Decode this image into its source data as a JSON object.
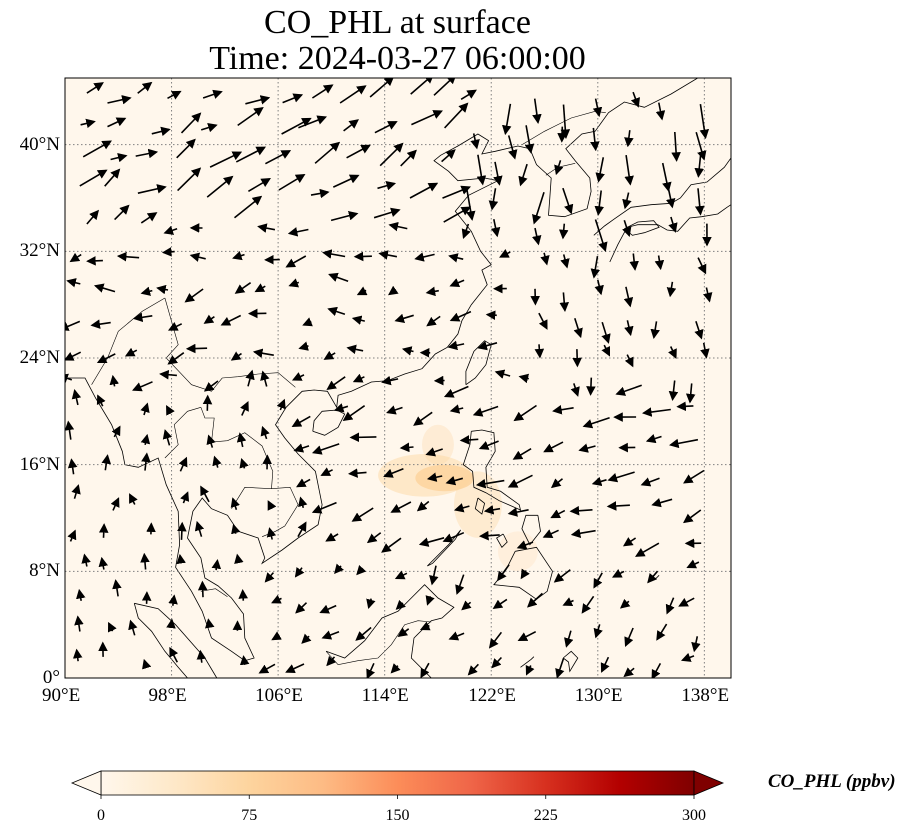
{
  "title_line1": "CO_PHL at surface",
  "title_line2": "Time: 2024-03-27 06:00:00",
  "map": {
    "lon_range": [
      90,
      140
    ],
    "lat_range": [
      0,
      45
    ],
    "lon_ticks": [
      {
        "value": 90,
        "label": "90°E"
      },
      {
        "value": 98,
        "label": "98°E"
      },
      {
        "value": 106,
        "label": "106°E"
      },
      {
        "value": 114,
        "label": "114°E"
      },
      {
        "value": 122,
        "label": "122°E"
      },
      {
        "value": 130,
        "label": "130°E"
      },
      {
        "value": 138,
        "label": "138°E"
      }
    ],
    "lat_ticks": [
      {
        "value": 0,
        "label": "0°"
      },
      {
        "value": 8,
        "label": "8°N"
      },
      {
        "value": 16,
        "label": "16°N"
      },
      {
        "value": 24,
        "label": "24°N"
      },
      {
        "value": 32,
        "label": "32°N"
      },
      {
        "value": 40,
        "label": "40°N"
      }
    ],
    "gridlines": true,
    "background_color": "#fff7ec",
    "plume_color": "#fdd49e"
  },
  "colorbar": {
    "label": "CO_PHL (ppbv)",
    "ticks": [
      "0",
      "75",
      "150",
      "225",
      "300"
    ],
    "range": [
      0,
      300
    ],
    "colormap": "OrRd",
    "colors": [
      "#fff7ec",
      "#fee8c8",
      "#fdd49e",
      "#fdbb84",
      "#fc8d59",
      "#ef6548",
      "#d7301f",
      "#b30000",
      "#7f0000"
    ],
    "extend": "both"
  }
}
